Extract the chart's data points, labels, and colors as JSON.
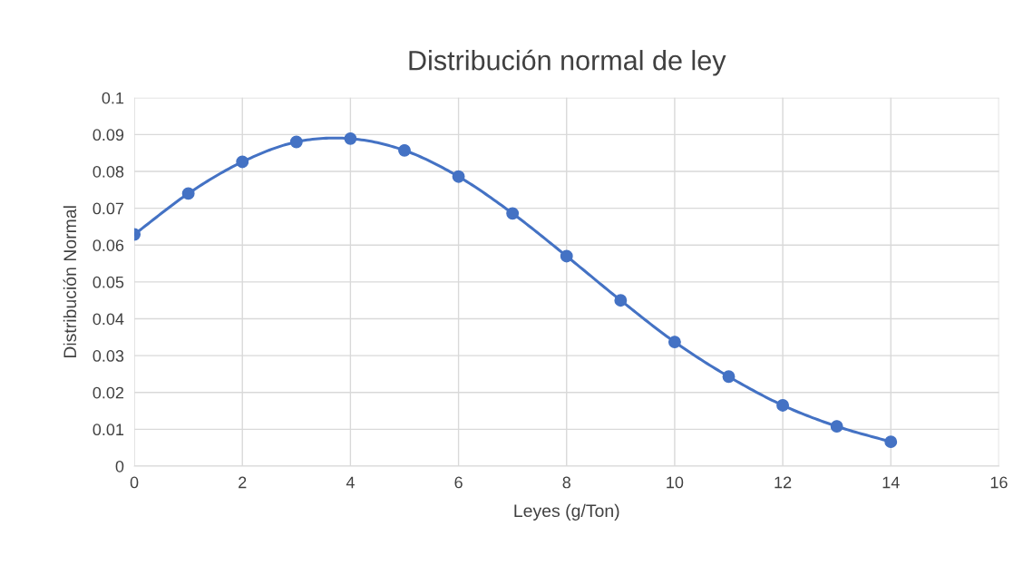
{
  "chart_data": {
    "type": "line",
    "title": "Distribución normal de ley",
    "xlabel": "Leyes (g/Ton)",
    "ylabel": "Distribución Normal",
    "x": [
      0,
      1,
      2,
      3,
      4,
      5,
      6,
      7,
      8,
      9,
      10,
      11,
      12,
      13,
      14
    ],
    "series": [
      {
        "color": "#4472c4",
        "values": [
          0.0629,
          0.074,
          0.0826,
          0.088,
          0.0889,
          0.0857,
          0.0786,
          0.0686,
          0.057,
          0.045,
          0.0337,
          0.0243,
          0.0165,
          0.0108,
          0.0066
        ]
      }
    ],
    "xlim": [
      0,
      16
    ],
    "xticks": [
      0,
      2,
      4,
      6,
      8,
      10,
      12,
      14,
      16
    ],
    "ylim": [
      0,
      0.1
    ],
    "yticks": [
      0,
      0.01,
      0.02,
      0.03,
      0.04,
      0.05,
      0.06,
      0.07,
      0.08,
      0.09,
      0.1
    ],
    "grid": true,
    "marker": "circle",
    "line_style": "solid"
  }
}
